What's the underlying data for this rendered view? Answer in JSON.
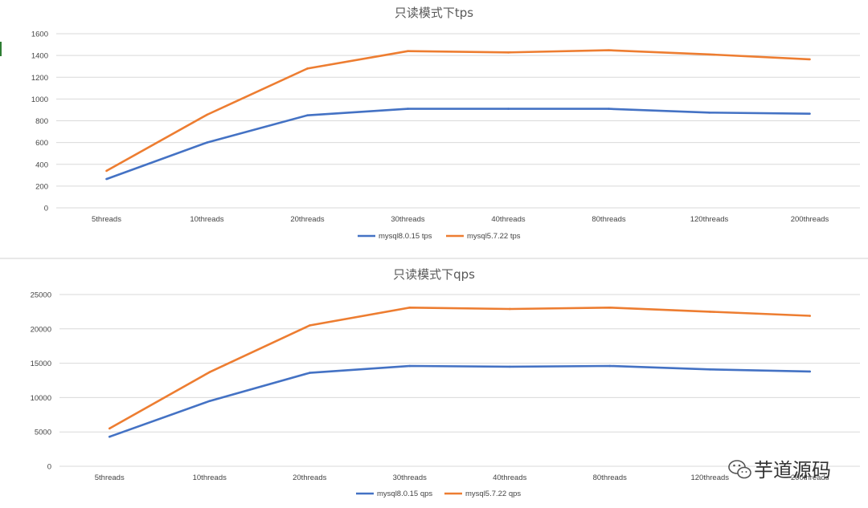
{
  "chart_data": [
    {
      "type": "line",
      "title": "只读模式下tps",
      "categories": [
        "5threads",
        "10threads",
        "20threads",
        "30threads",
        "40threads",
        "80threads",
        "120threads",
        "200threads"
      ],
      "ylim": [
        0,
        1600
      ],
      "yticks": [
        0,
        200,
        400,
        600,
        800,
        1000,
        1200,
        1400,
        1600
      ],
      "grid": true,
      "legend_position": "bottom",
      "series": [
        {
          "name": "mysql8.0.15 tps",
          "color": "#4472c4",
          "values": [
            265,
            600,
            850,
            910,
            910,
            910,
            875,
            865
          ]
        },
        {
          "name": "mysql5.7.22 tps",
          "color": "#ed7d31",
          "values": [
            340,
            855,
            1280,
            1440,
            1428,
            1448,
            1410,
            1365
          ]
        }
      ]
    },
    {
      "type": "line",
      "title": "只读模式下qps",
      "categories": [
        "5threads",
        "10threads",
        "20threads",
        "30threads",
        "40threads",
        "80threads",
        "120threads",
        "200threads"
      ],
      "ylim": [
        0,
        25000
      ],
      "yticks": [
        0,
        5000,
        10000,
        15000,
        20000,
        25000
      ],
      "grid": true,
      "legend_position": "bottom",
      "series": [
        {
          "name": "mysql8.0.15 qps",
          "color": "#4472c4",
          "values": [
            4300,
            9500,
            13600,
            14600,
            14500,
            14600,
            14100,
            13800
          ]
        },
        {
          "name": "mysql5.7.22 qps",
          "color": "#ed7d31",
          "values": [
            5500,
            13700,
            20500,
            23100,
            22900,
            23100,
            22500,
            21900
          ]
        }
      ]
    }
  ],
  "watermark": {
    "text": "芋道源码",
    "icon": "wechat-icon"
  }
}
